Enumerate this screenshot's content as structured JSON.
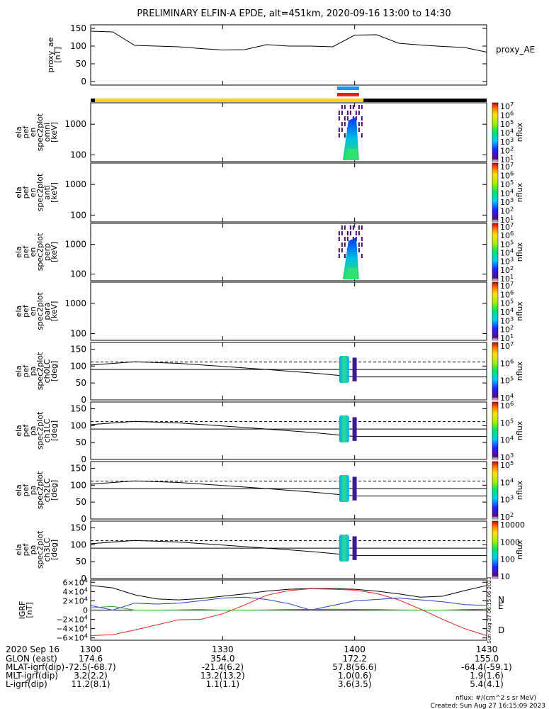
{
  "title": "PRELIMINARY ELFIN-A EPDE, alt=451km, 2020-09-16 13:00 to 14:30",
  "colors": {
    "black": "#000000",
    "gold": "#ffd700",
    "blue_bar": "#1e90ff",
    "red_bar": "#e8201c",
    "b_north": "#1f3fd4",
    "b_east": "#1fa81f",
    "b_down": "#e02020"
  },
  "ae_panel": {
    "ylabel_lines": [
      "proxy_ae",
      "[nT]"
    ],
    "yticks": [
      "150",
      "100",
      "50",
      "0"
    ],
    "legend": "proxy_AE"
  },
  "state_bar": {
    "segments": [
      {
        "color": "black",
        "from": "1300",
        "to": "1301"
      },
      {
        "color": "gold",
        "from": "1301",
        "to": "1402"
      },
      {
        "color": "black",
        "from": "1402",
        "to": "1430"
      }
    ]
  },
  "energy_panels": [
    {
      "ylabel_lines": [
        "ela",
        "pef",
        "en",
        "spec2plot",
        "omni",
        "[keV]"
      ],
      "yticks": [
        "1000",
        "100"
      ],
      "has_data": true
    },
    {
      "ylabel_lines": [
        "ela",
        "pef",
        "en",
        "spec2plot",
        "anti",
        "[keV]"
      ],
      "yticks": [
        "1000",
        "100"
      ],
      "has_data": false
    },
    {
      "ylabel_lines": [
        "ela",
        "pef",
        "en",
        "spec2plot",
        "perp",
        "[keV]"
      ],
      "yticks": [
        "1000",
        "100"
      ],
      "has_data": true
    },
    {
      "ylabel_lines": [
        "ela",
        "pef",
        "en",
        "spec2plot",
        "para",
        "[keV]"
      ],
      "yticks": [
        "1000",
        "100"
      ],
      "has_data": false
    }
  ],
  "energy_colorbar": {
    "labels": [
      "10^7",
      "10^6",
      "10^5",
      "10^4",
      "10^3",
      "10^2",
      "10^1"
    ],
    "units": "nflux"
  },
  "pitch_panels": [
    {
      "ylabel_lines": [
        "ela",
        "pef",
        "pa",
        "spec2plot",
        "ch0LC",
        "[deg]"
      ],
      "yticks": [
        "150",
        "100",
        "50",
        "0"
      ],
      "colorbar_labels": [
        "10^7",
        "10^6",
        "10^5",
        "10^4"
      ],
      "units": "nflux"
    },
    {
      "ylabel_lines": [
        "ela",
        "pef",
        "pa",
        "spec2plot",
        "ch1LC",
        "[deg]"
      ],
      "yticks": [
        "150",
        "100",
        "50",
        "0"
      ],
      "colorbar_labels": [
        "10^6",
        "10^5",
        "10^4",
        "10^3"
      ],
      "units": "nflux"
    },
    {
      "ylabel_lines": [
        "ela",
        "pef",
        "pa",
        "spec2plot",
        "ch2LC",
        "[deg]"
      ],
      "yticks": [
        "150",
        "100",
        "50",
        "0"
      ],
      "colorbar_labels": [
        "10^5",
        "10^4",
        "10^3",
        "10^2"
      ],
      "units": "nflux"
    },
    {
      "ylabel_lines": [
        "ela",
        "pef",
        "pa",
        "spec2plot",
        "ch3LC",
        "[deg]"
      ],
      "yticks": [
        "150",
        "100",
        "50",
        "0"
      ],
      "colorbar_labels": [
        "10000",
        "1000",
        "100",
        "10"
      ],
      "units": "nflux"
    }
  ],
  "igrf_panel": {
    "ylabel_lines": [
      "IGRF",
      "[nT]"
    ],
    "yticks": [
      "6×10^4",
      "4×10^4",
      "2×10^4",
      "0",
      "−2×10^4",
      "−4×10^4",
      "−6×10^4"
    ],
    "legend": [
      "N",
      "E",
      "D"
    ],
    "side_note": "Sun Aug 27 06:15:06 2023"
  },
  "footer": {
    "row_labels": [
      "2020 Sep 16",
      "GLON (east)",
      "MLAT-igrf(dip)",
      "MLT-igrf(dip)",
      "L-igrf(dip)"
    ],
    "columns": [
      {
        "time": "1300",
        "values": [
          "174.6",
          "-72.5(-68.7)",
          "3.2(2.2)",
          "11.2(8.1)"
        ]
      },
      {
        "time": "1330",
        "values": [
          "354.0",
          "-21.4(6.2)",
          "13.2(13.2)",
          "1.1(1.1)"
        ]
      },
      {
        "time": "1400",
        "values": [
          "172.2",
          "57.8(56.6)",
          "1.0(0.6)",
          "3.6(3.5)"
        ]
      },
      {
        "time": "1430",
        "values": [
          "155.0",
          "-64.4(-59.1)",
          "1.9(1.6)",
          "5.4(4.1)"
        ]
      }
    ],
    "units_note": "nflux: #/(cm^2 s sr MeV)",
    "created": "Created: Sun Aug 27 16:15:09 2023"
  },
  "chart_data": [
    {
      "type": "line",
      "name": "proxy_AE",
      "x": [
        "1300",
        "1305",
        "1310",
        "1315",
        "1320",
        "1325",
        "1330",
        "1335",
        "1340",
        "1345",
        "1350",
        "1355",
        "1400",
        "1405",
        "1410",
        "1415",
        "1420",
        "1425",
        "1430"
      ],
      "values": [
        142,
        140,
        102,
        100,
        98,
        93,
        89,
        90,
        104,
        100,
        100,
        98,
        131,
        132,
        108,
        103,
        99,
        96,
        83
      ],
      "ylim": [
        -10,
        160
      ]
    },
    {
      "type": "heatmap",
      "name": "energy spectrograms",
      "units": "nflux",
      "ylim_keV": [
        60,
        5000
      ],
      "active_time_window": [
        "1356",
        "1401"
      ]
    },
    {
      "type": "line",
      "name": "pitch-angle panels",
      "ylim": [
        0,
        170
      ],
      "dashed_line": 112,
      "solid_line": 90,
      "loss_cone_curve": [
        {
          "t": "1300",
          "deg": 103
        },
        {
          "t": "1310",
          "deg": 113
        },
        {
          "t": "1320",
          "deg": 108
        },
        {
          "t": "1330",
          "deg": 99
        },
        {
          "t": "1340",
          "deg": 90
        },
        {
          "t": "1350",
          "deg": 80
        },
        {
          "t": "1356",
          "deg": 73
        },
        {
          "t": "1400",
          "deg": 68
        },
        {
          "t": "1430",
          "deg": 68
        }
      ]
    },
    {
      "type": "line",
      "name": "IGRF",
      "ylim": [
        -65000,
        65000
      ],
      "x": [
        "1300",
        "1305",
        "1310",
        "1315",
        "1320",
        "1325",
        "1330",
        "1335",
        "1340",
        "1345",
        "1350",
        "1355",
        "1400",
        "1405",
        "1410",
        "1415",
        "1420",
        "1425",
        "1430"
      ],
      "series": [
        {
          "name": "total",
          "values": [
            53000,
            48000,
            33000,
            24000,
            22000,
            25000,
            30000,
            35000,
            41000,
            45000,
            46500,
            46500,
            45000,
            41000,
            35000,
            28000,
            30000,
            42000,
            53000
          ]
        },
        {
          "name": "N",
          "values": [
            10000,
            0,
            15000,
            13000,
            15000,
            20000,
            26000,
            28000,
            23000,
            14000,
            0,
            10000,
            20000,
            23000,
            26000,
            22000,
            18000,
            12000,
            10000
          ]
        },
        {
          "name": "E",
          "values": [
            5000,
            8000,
            0,
            0,
            500,
            1000,
            0,
            0,
            500,
            1000,
            1500,
            2000,
            1500,
            1000,
            500,
            0,
            0,
            1000,
            2000
          ]
        },
        {
          "name": "D",
          "values": [
            -55000,
            -53000,
            -43000,
            -32000,
            -21000,
            -20000,
            -8000,
            11000,
            32000,
            42000,
            46000,
            45000,
            43000,
            36000,
            22000,
            2000,
            -20000,
            -40000,
            -55000
          ]
        }
      ]
    }
  ]
}
